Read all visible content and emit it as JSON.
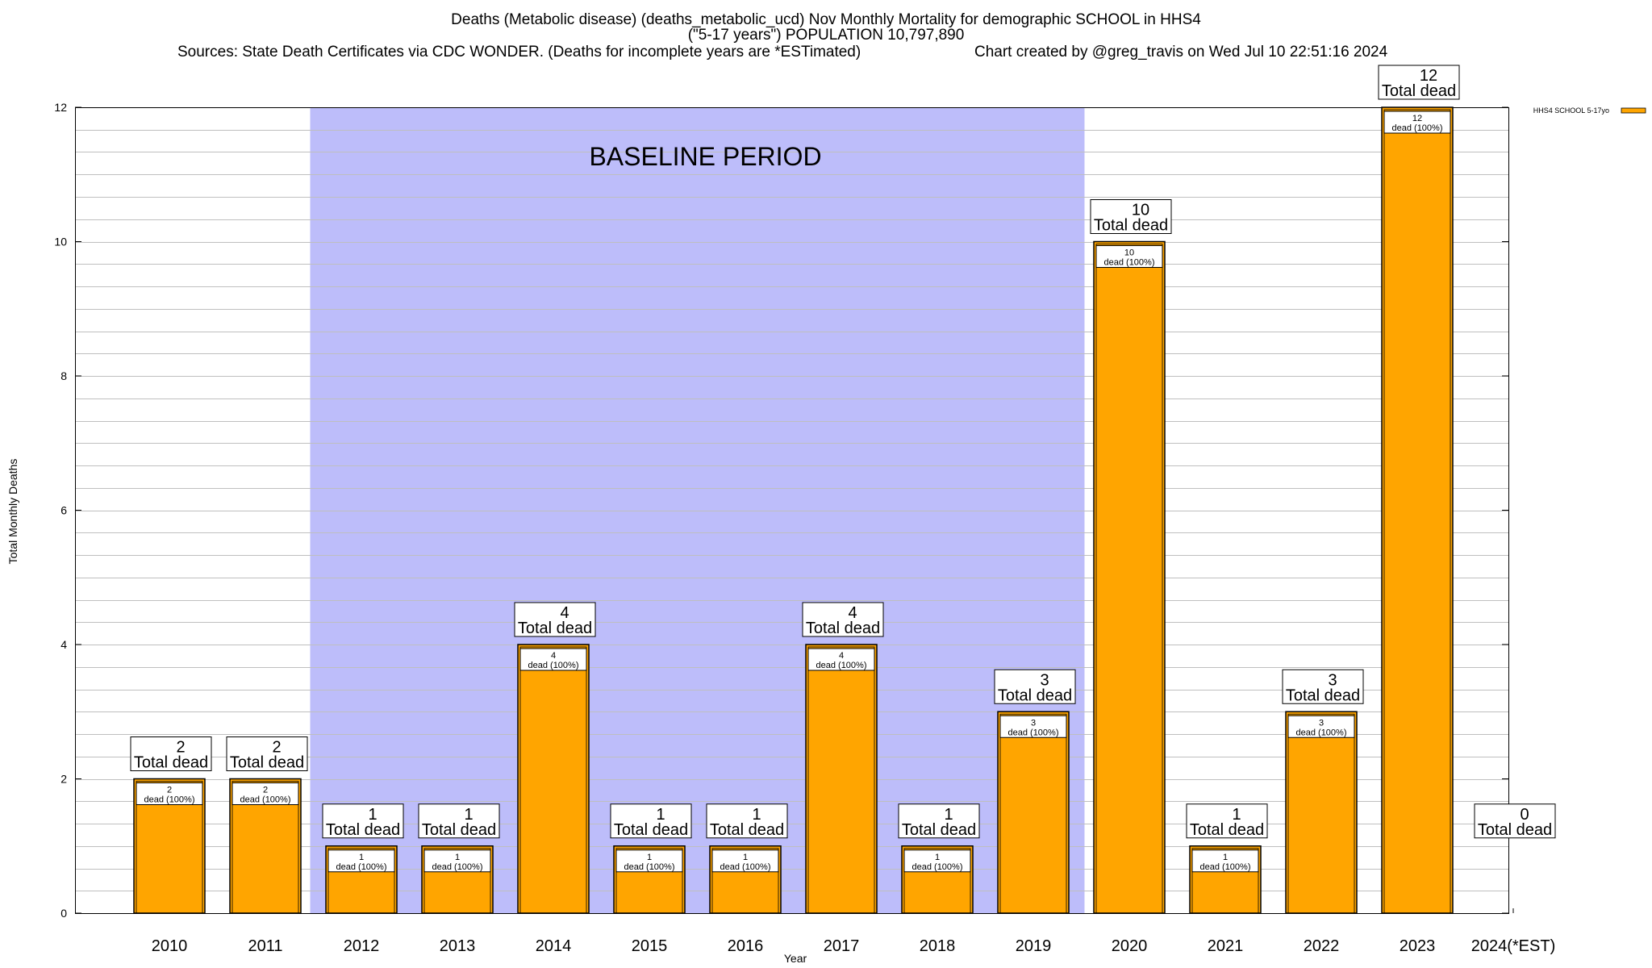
{
  "header": {
    "title_line1": "Deaths (Metabolic disease) (deaths_metabolic_ucd) Nov Monthly Mortality for demographic SCHOOL in HHS4",
    "title_line2": "(\"5-17 years\") POPULATION 10,797,890",
    "sources": "Sources: State Death Certificates via CDC WONDER. (Deaths for incomplete years are *ESTimated)",
    "credit": "Chart created by @greg_travis on Wed Jul 10 22:51:16 2024"
  },
  "colors": {
    "bar": "#FFA500",
    "baseline_band": "#BDBDFA",
    "grid": "#BFBFBF"
  },
  "chart_data": {
    "type": "bar",
    "title": "Deaths (Metabolic disease) (deaths_metabolic_ucd) Nov Monthly Mortality for demographic SCHOOL in HHS4",
    "xlabel": "Year",
    "ylabel": "Total Monthly Deaths",
    "ylim": [
      0,
      12
    ],
    "yticks": [
      0,
      2,
      4,
      6,
      8,
      10,
      12
    ],
    "grid": true,
    "legend": "top-right",
    "baseline": {
      "label": "BASELINE PERIOD",
      "from": "2012",
      "to": "2019"
    },
    "categories": [
      "2010",
      "2011",
      "2012",
      "2013",
      "2014",
      "2015",
      "2016",
      "2017",
      "2018",
      "2019",
      "2020",
      "2021",
      "2022",
      "2023",
      "2024(*EST)"
    ],
    "series": [
      {
        "name": "HHS4 SCHOOL 5-17yo",
        "values": [
          2,
          2,
          1,
          1,
          4,
          1,
          1,
          4,
          1,
          3,
          10,
          1,
          3,
          12,
          0
        ]
      }
    ],
    "total_label": "Total dead",
    "inner_label": "dead (100%)"
  }
}
